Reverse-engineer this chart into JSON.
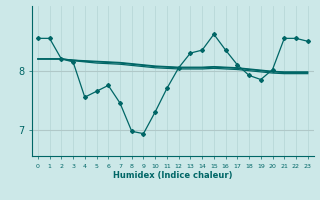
{
  "xlabel": "Humidex (Indice chaleur)",
  "x_values": [
    0,
    1,
    2,
    3,
    4,
    5,
    6,
    7,
    8,
    9,
    10,
    11,
    12,
    13,
    14,
    15,
    16,
    17,
    18,
    19,
    20,
    21,
    22,
    23
  ],
  "line_zigzag": [
    8.55,
    8.55,
    8.2,
    8.15,
    7.55,
    7.65,
    7.75,
    7.45,
    6.97,
    6.93,
    7.3,
    7.7,
    8.05,
    8.3,
    8.35,
    8.62,
    8.35,
    8.1,
    7.92,
    7.85,
    8.02,
    8.55,
    8.55,
    8.5
  ],
  "line_flat1": [
    8.2,
    8.2,
    8.2,
    8.18,
    8.17,
    8.16,
    8.15,
    8.14,
    8.12,
    8.1,
    8.08,
    8.07,
    8.06,
    8.06,
    8.06,
    8.07,
    8.06,
    8.05,
    8.03,
    8.01,
    7.99,
    7.98,
    7.98,
    7.98
  ],
  "line_flat2": [
    8.2,
    8.2,
    8.2,
    8.18,
    8.16,
    8.15,
    8.14,
    8.13,
    8.11,
    8.09,
    8.07,
    8.06,
    8.05,
    8.05,
    8.05,
    8.06,
    8.05,
    8.04,
    8.02,
    8.0,
    7.98,
    7.97,
    7.97,
    7.97
  ],
  "line_flat3": [
    8.2,
    8.2,
    8.2,
    8.17,
    8.15,
    8.13,
    8.12,
    8.11,
    8.09,
    8.07,
    8.05,
    8.04,
    8.03,
    8.03,
    8.03,
    8.04,
    8.03,
    8.02,
    8.0,
    7.98,
    7.96,
    7.95,
    7.95,
    7.95
  ],
  "bg_color": "#cce8e8",
  "line_color": "#006666",
  "grid_color_v": "#b8d8d8",
  "grid_color_h": "#b0c8c8",
  "yticks": [
    7,
    8
  ],
  "ylim": [
    6.55,
    9.1
  ],
  "xlim": [
    -0.5,
    23.5
  ]
}
